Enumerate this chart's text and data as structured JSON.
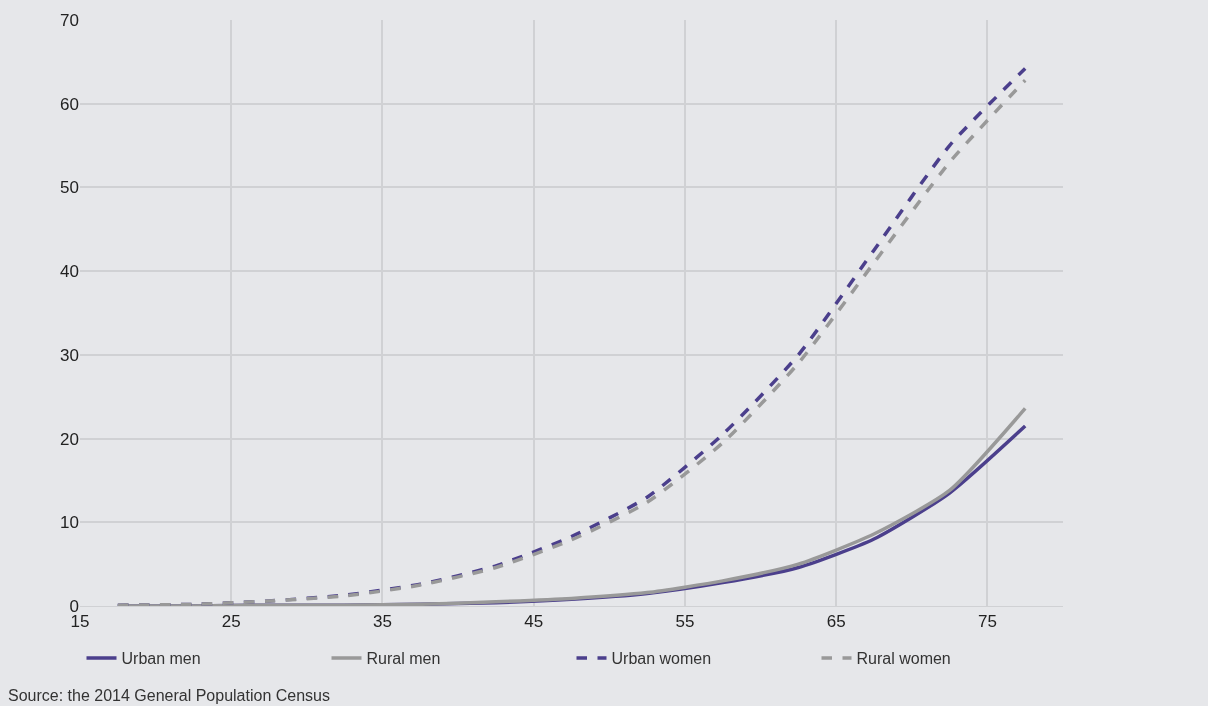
{
  "chart_data": {
    "type": "line",
    "x": [
      17.5,
      22.5,
      27.5,
      32.5,
      37.5,
      42.5,
      47.5,
      52.5,
      57.5,
      62.5,
      67.5,
      72.5,
      77.5
    ],
    "series": [
      {
        "name": "Urban men",
        "color": "#4b3f8c",
        "line_style": "solid",
        "values": [
          0.0,
          0.0,
          0.1,
          0.1,
          0.2,
          0.4,
          0.8,
          1.5,
          2.8,
          4.6,
          8.0,
          13.5,
          21.5
        ]
      },
      {
        "name": "Rural men",
        "color": "#999999",
        "line_style": "solid",
        "values": [
          0.0,
          0.0,
          0.1,
          0.1,
          0.2,
          0.5,
          0.9,
          1.6,
          3.0,
          5.0,
          8.6,
          13.8,
          23.6
        ]
      },
      {
        "name": "Urban women",
        "color": "#4b3f8c",
        "line_style": "dashed",
        "values": [
          0.1,
          0.2,
          0.6,
          1.3,
          2.6,
          4.8,
          8.3,
          13.0,
          20.5,
          30.0,
          42.5,
          55.0,
          64.2
        ]
      },
      {
        "name": "Rural women",
        "color": "#999999",
        "line_style": "dashed",
        "values": [
          0.1,
          0.2,
          0.6,
          1.2,
          2.5,
          4.6,
          7.9,
          12.4,
          19.5,
          29.0,
          41.0,
          53.0,
          62.8
        ]
      }
    ],
    "xlim": [
      15,
      80
    ],
    "xticks": [
      15,
      25,
      35,
      45,
      55,
      65,
      75
    ],
    "ylim": [
      0,
      70
    ],
    "yticks": [
      0,
      10,
      20,
      30,
      40,
      50,
      60,
      70
    ],
    "grid": true,
    "legend": "bottom",
    "marker": "none",
    "annotations": [
      "Source: the 2014 General Population Census"
    ]
  }
}
